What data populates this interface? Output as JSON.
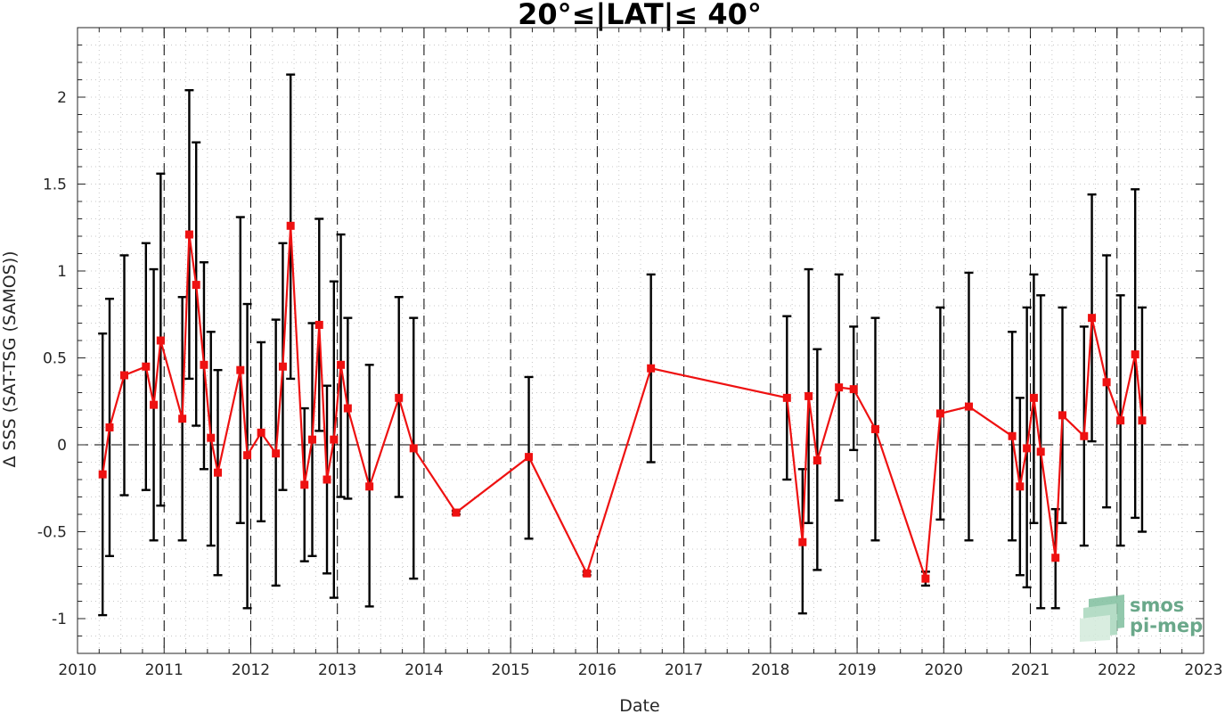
{
  "chart_data": {
    "type": "line",
    "title": "20°≤|LAT|≤ 40°",
    "xlabel": "Date",
    "ylabel": "Δ SSS (SAT-TSG (SAMOS))",
    "xlim": [
      2010.0,
      2023.0
    ],
    "ylim": [
      -1.2,
      2.4
    ],
    "x_ticks": [
      2010,
      2011,
      2012,
      2013,
      2014,
      2015,
      2016,
      2017,
      2018,
      2019,
      2020,
      2021,
      2022,
      2023
    ],
    "x_tick_labels": [
      "2010",
      "2011",
      "2012",
      "2013",
      "2014",
      "2015",
      "2016",
      "2017",
      "2018",
      "2019",
      "2020",
      "2021",
      "2022",
      "2023"
    ],
    "y_ticks": [
      -1,
      -0.5,
      0,
      0.5,
      1,
      1.5,
      2
    ],
    "y_tick_labels": [
      "-1",
      "-0.5",
      "0",
      "0.5",
      "1",
      "1.5",
      "2"
    ],
    "grid": "minor-dotted",
    "year_boundaries": "dashed-vertical",
    "zero_line": "dashed-horizontal",
    "series": [
      {
        "color": "#ee1111",
        "errorbar_color": "#000000",
        "marker": "square",
        "points": [
          {
            "x": 2010.29,
            "y": -0.17,
            "lo": -0.98,
            "hi": 0.64
          },
          {
            "x": 2010.37,
            "y": 0.1,
            "lo": -0.64,
            "hi": 0.84
          },
          {
            "x": 2010.54,
            "y": 0.4,
            "lo": -0.29,
            "hi": 1.09
          },
          {
            "x": 2010.79,
            "y": 0.45,
            "lo": -0.26,
            "hi": 1.16
          },
          {
            "x": 2010.88,
            "y": 0.23,
            "lo": -0.55,
            "hi": 1.01
          },
          {
            "x": 2010.96,
            "y": 0.6,
            "lo": -0.35,
            "hi": 1.56
          },
          {
            "x": 2011.21,
            "y": 0.15,
            "lo": -0.55,
            "hi": 0.85
          },
          {
            "x": 2011.29,
            "y": 1.21,
            "lo": 0.38,
            "hi": 2.04
          },
          {
            "x": 2011.37,
            "y": 0.92,
            "lo": 0.11,
            "hi": 1.74
          },
          {
            "x": 2011.46,
            "y": 0.46,
            "lo": -0.14,
            "hi": 1.05
          },
          {
            "x": 2011.54,
            "y": 0.04,
            "lo": -0.58,
            "hi": 0.65
          },
          {
            "x": 2011.62,
            "y": -0.16,
            "lo": -0.75,
            "hi": 0.43
          },
          {
            "x": 2011.88,
            "y": 0.43,
            "lo": -0.45,
            "hi": 1.31
          },
          {
            "x": 2011.96,
            "y": -0.06,
            "lo": -0.94,
            "hi": 0.81
          },
          {
            "x": 2012.12,
            "y": 0.07,
            "lo": -0.44,
            "hi": 0.59
          },
          {
            "x": 2012.29,
            "y": -0.05,
            "lo": -0.81,
            "hi": 0.72
          },
          {
            "x": 2012.37,
            "y": 0.45,
            "lo": -0.26,
            "hi": 1.16
          },
          {
            "x": 2012.46,
            "y": 1.26,
            "lo": 0.38,
            "hi": 2.13
          },
          {
            "x": 2012.62,
            "y": -0.23,
            "lo": -0.67,
            "hi": 0.21
          },
          {
            "x": 2012.71,
            "y": 0.03,
            "lo": -0.64,
            "hi": 0.7
          },
          {
            "x": 2012.79,
            "y": 0.69,
            "lo": 0.08,
            "hi": 1.3
          },
          {
            "x": 2012.88,
            "y": -0.2,
            "lo": -0.74,
            "hi": 0.34
          },
          {
            "x": 2012.96,
            "y": 0.03,
            "lo": -0.88,
            "hi": 0.94
          },
          {
            "x": 2013.04,
            "y": 0.46,
            "lo": -0.3,
            "hi": 1.21
          },
          {
            "x": 2013.12,
            "y": 0.21,
            "lo": -0.31,
            "hi": 0.73
          },
          {
            "x": 2013.37,
            "y": -0.24,
            "lo": -0.93,
            "hi": 0.46
          },
          {
            "x": 2013.71,
            "y": 0.27,
            "lo": -0.3,
            "hi": 0.85
          },
          {
            "x": 2013.88,
            "y": -0.02,
            "lo": -0.77,
            "hi": 0.73
          },
          {
            "x": 2014.37,
            "y": -0.39,
            "lo": -0.4,
            "hi": -0.38
          },
          {
            "x": 2015.21,
            "y": -0.07,
            "lo": -0.54,
            "hi": 0.39
          },
          {
            "x": 2015.88,
            "y": -0.74,
            "lo": -0.75,
            "hi": -0.73
          },
          {
            "x": 2016.62,
            "y": 0.44,
            "lo": -0.1,
            "hi": 0.98
          },
          {
            "x": 2018.19,
            "y": 0.27,
            "lo": -0.2,
            "hi": 0.74
          },
          {
            "x": 2018.37,
            "y": -0.56,
            "lo": -0.97,
            "hi": -0.14
          },
          {
            "x": 2018.44,
            "y": 0.28,
            "lo": -0.45,
            "hi": 1.01
          },
          {
            "x": 2018.54,
            "y": -0.09,
            "lo": -0.72,
            "hi": 0.55
          },
          {
            "x": 2018.79,
            "y": 0.33,
            "lo": -0.32,
            "hi": 0.98
          },
          {
            "x": 2018.96,
            "y": 0.32,
            "lo": -0.03,
            "hi": 0.68
          },
          {
            "x": 2019.21,
            "y": 0.09,
            "lo": -0.55,
            "hi": 0.73
          },
          {
            "x": 2019.79,
            "y": -0.77,
            "lo": -0.81,
            "hi": -0.73
          },
          {
            "x": 2019.96,
            "y": 0.18,
            "lo": -0.43,
            "hi": 0.79
          },
          {
            "x": 2020.29,
            "y": 0.22,
            "lo": -0.55,
            "hi": 0.99
          },
          {
            "x": 2020.79,
            "y": 0.05,
            "lo": -0.55,
            "hi": 0.65
          },
          {
            "x": 2020.88,
            "y": -0.24,
            "lo": -0.75,
            "hi": 0.27
          },
          {
            "x": 2020.96,
            "y": -0.02,
            "lo": -0.82,
            "hi": 0.79
          },
          {
            "x": 2021.04,
            "y": 0.27,
            "lo": -0.45,
            "hi": 0.98
          },
          {
            "x": 2021.12,
            "y": -0.04,
            "lo": -0.94,
            "hi": 0.86
          },
          {
            "x": 2021.29,
            "y": -0.65,
            "lo": -0.94,
            "hi": -0.37
          },
          {
            "x": 2021.37,
            "y": 0.17,
            "lo": -0.45,
            "hi": 0.79
          },
          {
            "x": 2021.62,
            "y": 0.05,
            "lo": -0.58,
            "hi": 0.68
          },
          {
            "x": 2021.71,
            "y": 0.73,
            "lo": 0.02,
            "hi": 1.44
          },
          {
            "x": 2021.88,
            "y": 0.36,
            "lo": -0.36,
            "hi": 1.09
          },
          {
            "x": 2022.04,
            "y": 0.14,
            "lo": -0.58,
            "hi": 0.86
          },
          {
            "x": 2022.21,
            "y": 0.52,
            "lo": -0.42,
            "hi": 1.47
          },
          {
            "x": 2022.29,
            "y": 0.14,
            "lo": -0.5,
            "hi": 0.79
          }
        ]
      }
    ]
  },
  "logo": {
    "line1": "smos",
    "line2": "pi-mep",
    "color": "#6aa88a"
  }
}
